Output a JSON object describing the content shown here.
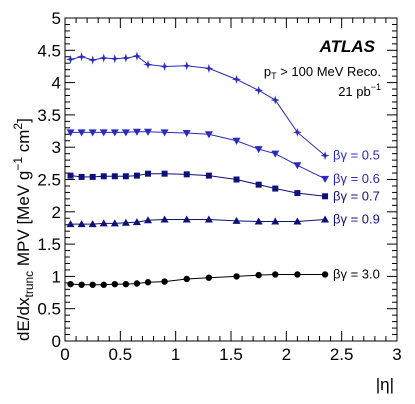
{
  "chart_data": {
    "type": "line",
    "xlabel": "|η|",
    "ylabel": {
      "main": "dE/dx",
      "sub": "trunc",
      "unit_open": " MPV [MeV g",
      "sup1": "−1",
      "unit_mid": " cm",
      "sup2": "2",
      "unit_close": "]"
    },
    "xlim": [
      0,
      3
    ],
    "ylim": [
      0,
      5
    ],
    "xticks": [
      "0",
      "0.5",
      "1",
      "1.5",
      "2",
      "2.5",
      "3"
    ],
    "yticks": [
      "0",
      "0.5",
      "1",
      "1.5",
      "2",
      "2.5",
      "3",
      "3.5",
      "4",
      "4.5",
      "5"
    ],
    "grid": false,
    "annotations": {
      "experiment": "ATLAS",
      "cut_pre": "p",
      "cut_sub": "T",
      "cut_post": " > 100 MeV Reco.",
      "lumi_pre": "21 pb",
      "lumi_sup": "−1"
    },
    "colors": {
      "dark_navy": "#10107a",
      "blue": "#2a2abf",
      "black": "#000000"
    },
    "series": [
      {
        "name": "βγ = 0.5",
        "marker": "star",
        "color": "#2a2abf",
        "x": [
          0.05,
          0.15,
          0.25,
          0.35,
          0.45,
          0.55,
          0.65,
          0.75,
          0.9,
          1.1,
          1.3,
          1.55,
          1.75,
          1.9,
          2.1,
          2.35
        ],
        "y": [
          4.36,
          4.4,
          4.35,
          4.38,
          4.37,
          4.38,
          4.41,
          4.28,
          4.25,
          4.26,
          4.22,
          4.05,
          3.88,
          3.73,
          3.23,
          2.87
        ]
      },
      {
        "name": "βγ = 0.6",
        "marker": "triangle-down",
        "color": "#2a2abf",
        "x": [
          0.05,
          0.15,
          0.25,
          0.35,
          0.45,
          0.55,
          0.65,
          0.75,
          0.9,
          1.1,
          1.3,
          1.55,
          1.75,
          1.9,
          2.1,
          2.35
        ],
        "y": [
          3.23,
          3.23,
          3.23,
          3.23,
          3.23,
          3.23,
          3.24,
          3.24,
          3.23,
          3.22,
          3.2,
          3.1,
          2.97,
          2.9,
          2.72,
          2.51
        ]
      },
      {
        "name": "βγ = 0.7",
        "marker": "square",
        "color": "#10107a",
        "x": [
          0.05,
          0.15,
          0.25,
          0.35,
          0.45,
          0.55,
          0.65,
          0.75,
          0.9,
          1.1,
          1.3,
          1.55,
          1.75,
          1.9,
          2.1,
          2.35
        ],
        "y": [
          2.56,
          2.54,
          2.54,
          2.55,
          2.55,
          2.55,
          2.56,
          2.59,
          2.59,
          2.58,
          2.56,
          2.5,
          2.42,
          2.36,
          2.29,
          2.24
        ]
      },
      {
        "name": "βγ = 0.9",
        "marker": "triangle-up",
        "color": "#10107a",
        "x": [
          0.05,
          0.15,
          0.25,
          0.35,
          0.45,
          0.55,
          0.65,
          0.75,
          0.9,
          1.1,
          1.3,
          1.55,
          1.75,
          1.9,
          2.1,
          2.35
        ],
        "y": [
          1.81,
          1.81,
          1.81,
          1.82,
          1.82,
          1.83,
          1.84,
          1.87,
          1.88,
          1.88,
          1.88,
          1.86,
          1.85,
          1.85,
          1.85,
          1.88
        ]
      },
      {
        "name": "βγ = 3.0",
        "marker": "circle",
        "color": "#000000",
        "x": [
          0.05,
          0.15,
          0.25,
          0.35,
          0.45,
          0.55,
          0.65,
          0.75,
          0.9,
          1.1,
          1.3,
          1.55,
          1.75,
          1.9,
          2.1,
          2.35
        ],
        "y": [
          0.88,
          0.87,
          0.87,
          0.87,
          0.88,
          0.88,
          0.89,
          0.91,
          0.92,
          0.96,
          0.98,
          1.0,
          1.02,
          1.03,
          1.03,
          1.03
        ]
      }
    ]
  }
}
